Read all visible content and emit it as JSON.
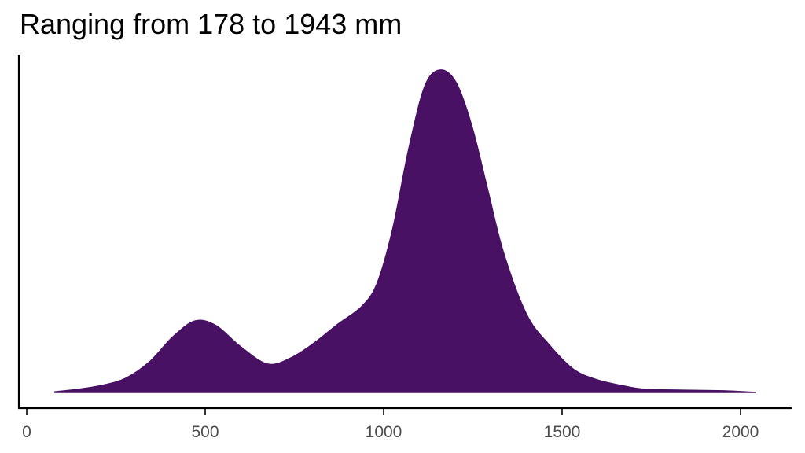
{
  "chart_data": {
    "type": "area",
    "subtype": "density",
    "title": "Ranging from 178 to 1943 mm",
    "xlabel": "",
    "ylabel": "",
    "xlim": [
      0,
      2150
    ],
    "x_ticks": [
      0,
      500,
      1000,
      1500,
      2000
    ],
    "x_tick_labels": [
      "0",
      "500",
      "1000",
      "1500",
      "2000"
    ],
    "y_ticks": [],
    "grid": false,
    "legend": null,
    "fill_color": "#481163",
    "series": [
      {
        "name": "density",
        "x": [
          79,
          145,
          211,
          277,
          344,
          410,
          472,
          531,
          597,
          674,
          740,
          806,
          872,
          938,
          982,
          1026,
          1070,
          1115,
          1158,
          1203,
          1247,
          1291,
          1335,
          1401,
          1467,
          1533,
          1599,
          1665,
          1731,
          1841,
          1952,
          2044
        ],
        "y_relative": [
          0.002,
          0.01,
          0.022,
          0.044,
          0.095,
          0.173,
          0.222,
          0.207,
          0.144,
          0.088,
          0.107,
          0.154,
          0.212,
          0.266,
          0.339,
          0.51,
          0.754,
          0.949,
          1.0,
          0.961,
          0.827,
          0.632,
          0.437,
          0.241,
          0.144,
          0.071,
          0.039,
          0.022,
          0.01,
          0.007,
          0.005,
          0.0
        ]
      }
    ],
    "annotations": []
  },
  "plot": {
    "title": "Ranging from 178 to 1943 mm"
  }
}
